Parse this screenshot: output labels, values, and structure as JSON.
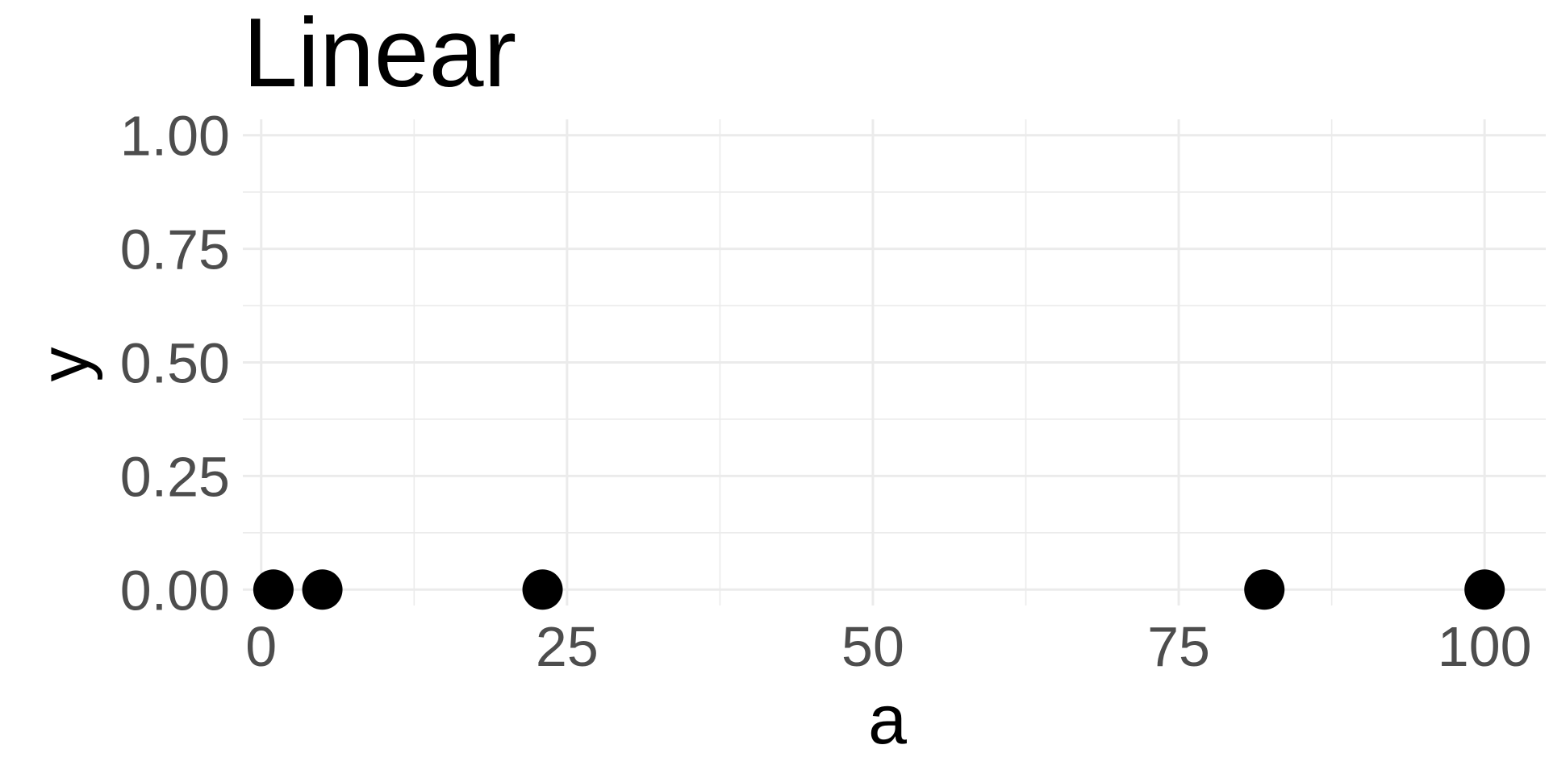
{
  "chart_data": {
    "type": "scatter",
    "title": "Linear",
    "xlabel": "a",
    "ylabel": "y",
    "xlim": [
      -1.5,
      105
    ],
    "ylim": [
      -0.035,
      1.035
    ],
    "x_ticks": [
      0,
      25,
      50,
      75,
      100
    ],
    "x_tick_labels": [
      "0",
      "25",
      "50",
      "75",
      "100"
    ],
    "y_ticks": [
      0,
      0.25,
      0.5,
      0.75,
      1
    ],
    "y_tick_labels": [
      "0.00",
      "0.25",
      "0.50",
      "0.75",
      "1.00"
    ],
    "grid": true,
    "point_color": "#000000",
    "points": [
      {
        "x": 1,
        "y": 0
      },
      {
        "x": 5,
        "y": 0
      },
      {
        "x": 23,
        "y": 0
      },
      {
        "x": 82,
        "y": 0
      },
      {
        "x": 100,
        "y": 0
      }
    ]
  }
}
